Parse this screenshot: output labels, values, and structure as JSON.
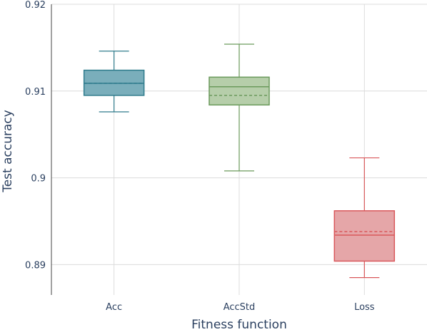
{
  "chart_data": {
    "type": "box",
    "xlabel": "Fitness function",
    "ylabel": "Test accuracy",
    "ylim": [
      0.8865,
      0.92
    ],
    "yticks": [
      0.89,
      0.9,
      0.91,
      0.92
    ],
    "ytick_labels": [
      "0.89",
      "0.9",
      "0.91",
      "0.92"
    ],
    "grid": true,
    "boxes": [
      {
        "category": "Acc",
        "color": "#2f7b8c",
        "fill": "#7aaebb",
        "whisker_low": 0.9076,
        "q1": 0.9095,
        "median": 0.9109,
        "mean": 0.9109,
        "q3": 0.9124,
        "whisker_high": 0.9146
      },
      {
        "category": "AccStd",
        "color": "#6b9a5c",
        "fill": "#b6ceaa",
        "whisker_low": 0.9008,
        "q1": 0.9084,
        "median": 0.9105,
        "mean": 0.9095,
        "q3": 0.9116,
        "whisker_high": 0.9154
      },
      {
        "category": "Loss",
        "color": "#d9585b",
        "fill": "#e5a6a8",
        "whisker_low": 0.8885,
        "q1": 0.8904,
        "median": 0.8934,
        "mean": 0.8938,
        "q3": 0.8962,
        "whisker_high": 0.9023
      }
    ]
  }
}
